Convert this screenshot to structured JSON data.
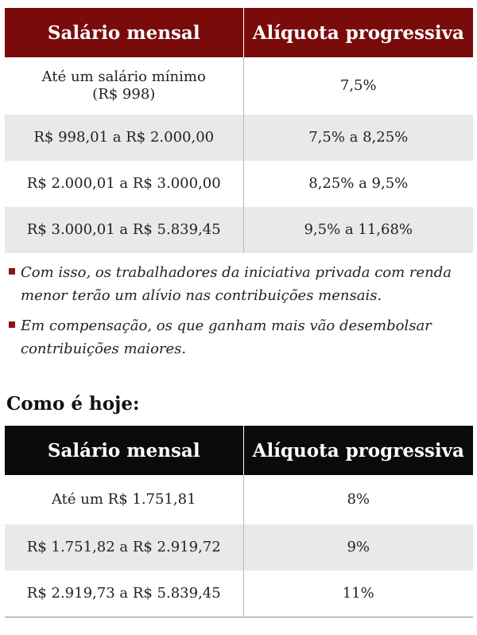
{
  "new_table": {
    "headers": [
      "Salário mensal",
      "Alíquota progressiva"
    ],
    "rows": [
      {
        "salary": "Até um salário mínimo (R$ 998)",
        "rate": "7,5%"
      },
      {
        "salary": "R$ 998,01 a R$ 2.000,00",
        "rate": "7,5% a 8,25%"
      },
      {
        "salary": "R$ 2.000,01 a R$ 3.000,00",
        "rate": "8,25% a 9,5%"
      },
      {
        "salary": "R$ 3.000,01 a R$ 5.839,45",
        "rate": "9,5% a 11,68%"
      }
    ]
  },
  "notes": [
    "Com isso, os trabalhadores da iniciativa privada com renda menor terão um alívio nas contribuições mensais.",
    "Em compensação, os que ganham mais vão desembolsar contribuições maiores."
  ],
  "current_section": {
    "title": "Como é hoje:"
  },
  "current_table": {
    "headers": [
      "Salário mensal",
      "Alíquota progressiva"
    ],
    "rows": [
      {
        "salary": "Até um R$ 1.751,81",
        "rate": "8%"
      },
      {
        "salary": "R$ 1.751,82 a R$ 2.919,72",
        "rate": "9%"
      },
      {
        "salary": "R$ 2.919,73 a R$ 5.839,45",
        "rate": "11%"
      }
    ]
  },
  "colors": {
    "header_new": "#7a0b0b",
    "header_current": "#0b0b0b",
    "row_shade": "#e9e9e9",
    "bullet": "#8b1414"
  }
}
